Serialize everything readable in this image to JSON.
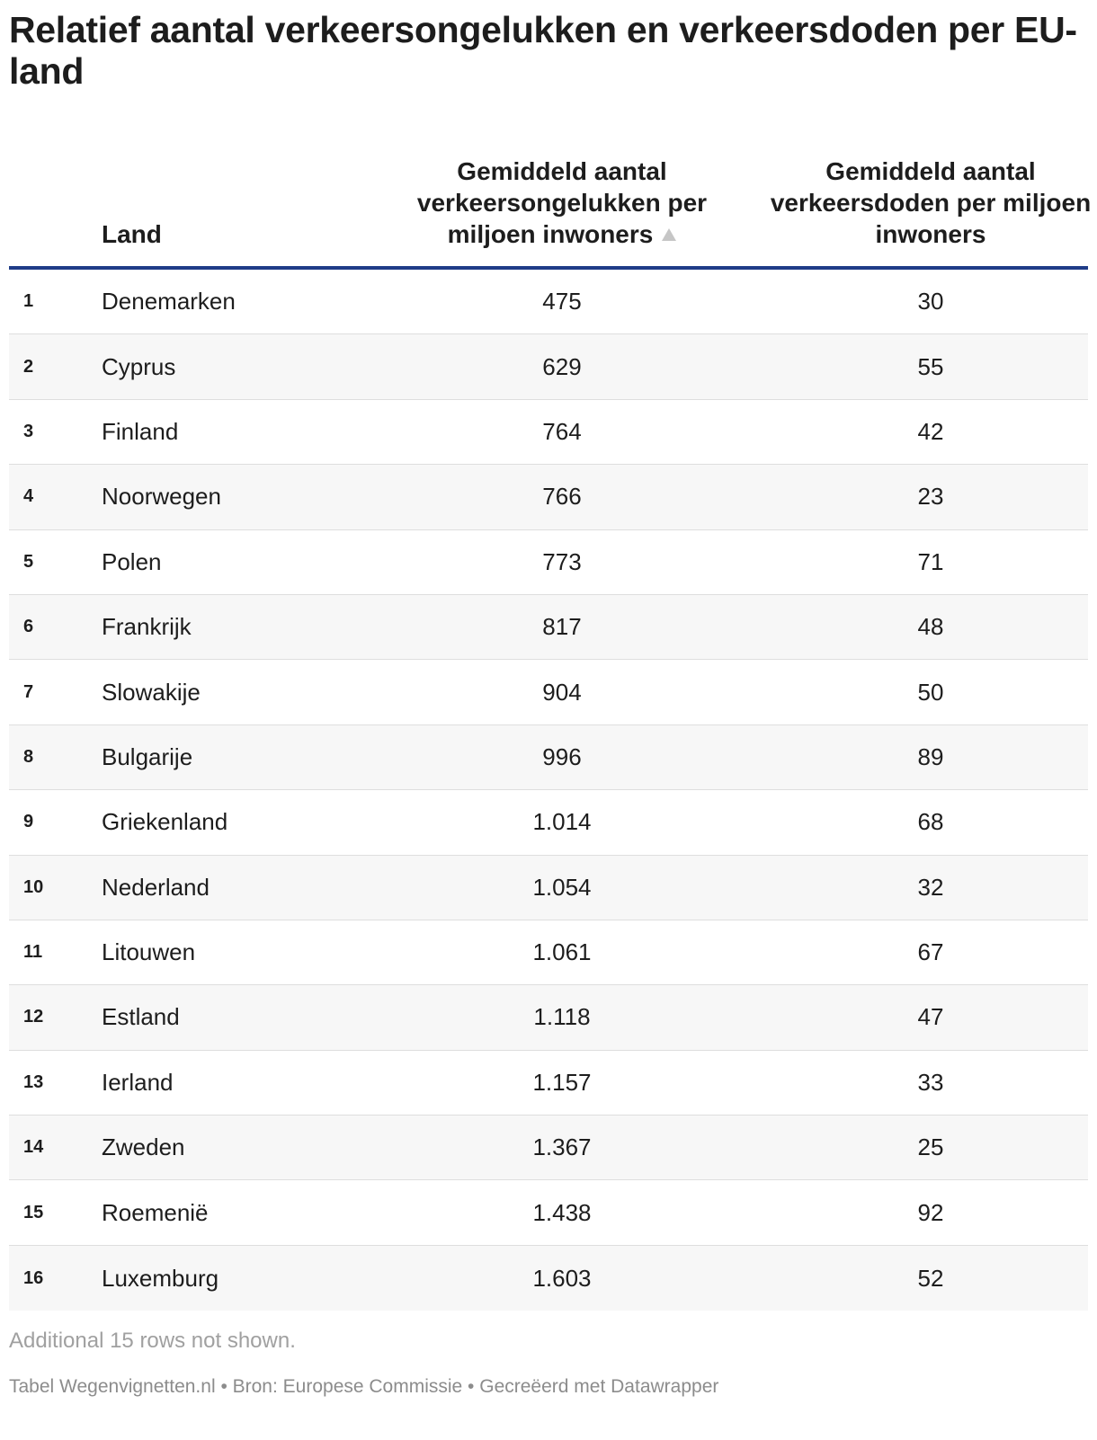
{
  "title": "Relatief aantal verkeersongelukken en verkeersdoden per EU-land",
  "chart_data": {
    "type": "table",
    "title": "Relatief aantal verkeersongelukken en verkeersdoden per EU-land",
    "columns": [
      "",
      "Land",
      "Gemiddeld aantal verkeersongelukken per miljoen inwoners",
      "Gemiddeld aantal verkeersdoden per miljoen inwoners"
    ],
    "sorted_column": 2,
    "sort_direction": "ascending",
    "rows": [
      {
        "rank": "1",
        "land": "Denemarken",
        "ongelukken": "475",
        "doden": "30"
      },
      {
        "rank": "2",
        "land": "Cyprus",
        "ongelukken": "629",
        "doden": "55"
      },
      {
        "rank": "3",
        "land": "Finland",
        "ongelukken": "764",
        "doden": "42"
      },
      {
        "rank": "4",
        "land": "Noorwegen",
        "ongelukken": "766",
        "doden": "23"
      },
      {
        "rank": "5",
        "land": "Polen",
        "ongelukken": "773",
        "doden": "71"
      },
      {
        "rank": "6",
        "land": "Frankrijk",
        "ongelukken": "817",
        "doden": "48"
      },
      {
        "rank": "7",
        "land": "Slowakije",
        "ongelukken": "904",
        "doden": "50"
      },
      {
        "rank": "8",
        "land": "Bulgarije",
        "ongelukken": "996",
        "doden": "89"
      },
      {
        "rank": "9",
        "land": "Griekenland",
        "ongelukken": "1.014",
        "doden": "68"
      },
      {
        "rank": "10",
        "land": "Nederland",
        "ongelukken": "1.054",
        "doden": "32"
      },
      {
        "rank": "11",
        "land": "Litouwen",
        "ongelukken": "1.061",
        "doden": "67"
      },
      {
        "rank": "12",
        "land": "Estland",
        "ongelukken": "1.118",
        "doden": "47"
      },
      {
        "rank": "13",
        "land": "Ierland",
        "ongelukken": "1.157",
        "doden": "33"
      },
      {
        "rank": "14",
        "land": "Zweden",
        "ongelukken": "1.367",
        "doden": "25"
      },
      {
        "rank": "15",
        "land": "Roemenië",
        "ongelukken": "1.438",
        "doden": "92"
      },
      {
        "rank": "16",
        "land": "Luxemburg",
        "ongelukken": "1.603",
        "doden": "52"
      }
    ]
  },
  "header": {
    "land": "Land",
    "col1": "Gemiddeld aantal verkeersongelukken per miljoen inwoners",
    "col2": "Gemiddeld aantal verkeersdoden per miljoen inwoners",
    "sort_icon": "sort-ascending-icon"
  },
  "note": "Additional 15 rows not shown.",
  "footer": "Tabel Wegenvignetten.nl • Bron: Europese Commissie • Gecreëerd met Datawrapper"
}
